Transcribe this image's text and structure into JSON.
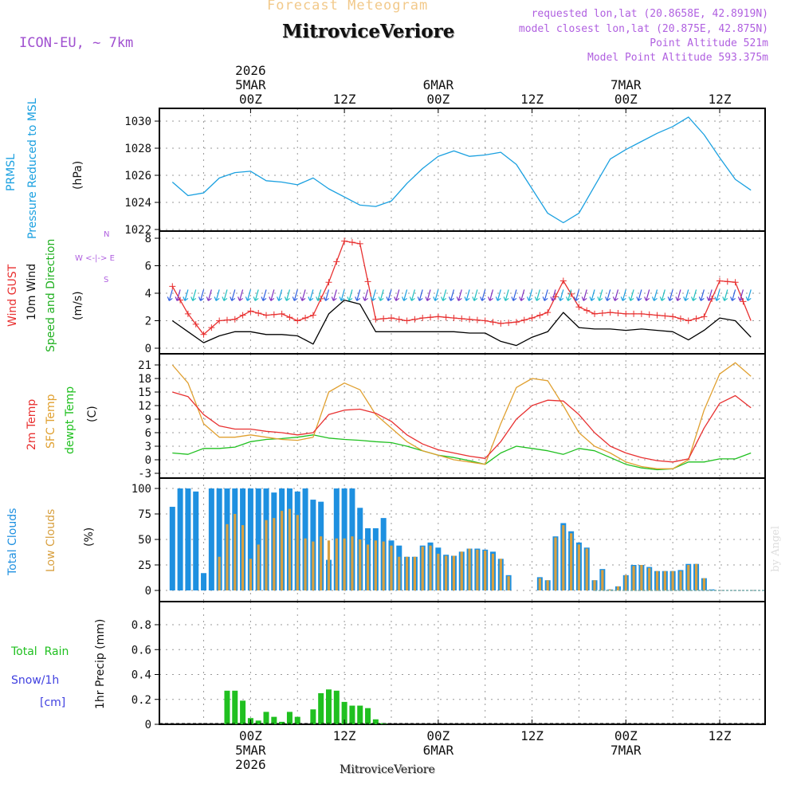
{
  "header": {
    "title": "Forecast Meteogram",
    "location": "MitroviceVeriore",
    "model": "ICON-EU, ~ 7km",
    "requested": "requested lon,lat (20.8658E, 42.8919N)",
    "closest": "model closest lon,lat (20.875E, 42.875N)",
    "point_altitude": "Point Altitude 521m",
    "model_altitude": "Model Point Altitude 593.375m",
    "watermark": "by Angel",
    "bottom_label": "MitroviceVeriore"
  },
  "time_axis": {
    "top_ticks": [
      {
        "t": 0,
        "lines": [
          "2026",
          "5MAR",
          "00Z"
        ]
      },
      {
        "t": 12,
        "lines": [
          "12Z"
        ]
      },
      {
        "t": 24,
        "lines": [
          "6MAR",
          "00Z"
        ]
      },
      {
        "t": 36,
        "lines": [
          "12Z"
        ]
      },
      {
        "t": 48,
        "lines": [
          "7MAR",
          "00Z"
        ]
      },
      {
        "t": 60,
        "lines": [
          "12Z"
        ]
      }
    ],
    "bottom_ticks": [
      {
        "t": 0,
        "lines": [
          "00Z",
          "5MAR",
          "2026"
        ]
      },
      {
        "t": 12,
        "lines": [
          "12Z"
        ]
      },
      {
        "t": 24,
        "lines": [
          "00Z",
          "6MAR"
        ]
      },
      {
        "t": 36,
        "lines": [
          "12Z"
        ]
      },
      {
        "t": 48,
        "lines": [
          "00Z",
          "7MAR"
        ]
      },
      {
        "t": 60,
        "lines": [
          "12Z"
        ]
      }
    ]
  },
  "legends": {
    "pressure": {
      "label": "PRMSL",
      "label2": "Pressure Reduced to MSL",
      "unit": "(hPa)",
      "color": "#1aa0e0"
    },
    "wind": {
      "gust": "Wind GUST",
      "wind10": "10m Wind",
      "dir": "Speed and Direction",
      "unit": "(m/s)",
      "compass": [
        "N",
        "W <-|-> E",
        "S"
      ],
      "gust_color": "#e83030",
      "wind_color": "#000000",
      "dir_color": "#20b020"
    },
    "temp": {
      "t2m": "2m Temp",
      "sfc": "SFC Temp",
      "dew": "dewpt Temp",
      "unit": "(C)",
      "t2m_color": "#e83030",
      "sfc_color": "#e0a030",
      "dew_color": "#20c020"
    },
    "clouds": {
      "total": "Total Clouds",
      "low": "Low Clouds",
      "unit": "(%)",
      "total_color": "#1e90e0",
      "low_color": "#d8a040"
    },
    "precip": {
      "rain": "Total  Rain",
      "snow": "Snow/1h",
      "cm": "[cm]",
      "axis": "1hr Precip (mm)",
      "rain_color": "#20c020",
      "snow_color": "#4040e0"
    }
  },
  "chart_data": [
    {
      "type": "line",
      "title": "PRMSL Pressure Reduced to MSL",
      "ylabel": "(hPa)",
      "ylim": [
        1022,
        1031
      ],
      "yticks": [
        1022,
        1024,
        1026,
        1028,
        1030
      ],
      "x_hours_from_5MAR00Z": [
        -10,
        -8,
        -6,
        -4,
        -2,
        0,
        2,
        4,
        6,
        8,
        10,
        12,
        14,
        16,
        18,
        20,
        22,
        24,
        26,
        28,
        30,
        32,
        34,
        36,
        38,
        40,
        42,
        44,
        46,
        48,
        50,
        52,
        54,
        56,
        58,
        60,
        62,
        64
      ],
      "series": [
        {
          "name": "PRMSL",
          "values": [
            1025.5,
            1024.5,
            1024.7,
            1025.8,
            1026.2,
            1026.3,
            1025.6,
            1025.5,
            1025.3,
            1025.8,
            1025.0,
            1024.4,
            1023.8,
            1023.7,
            1024.1,
            1025.4,
            1026.5,
            1027.4,
            1027.8,
            1027.4,
            1027.5,
            1027.7,
            1026.8,
            1025.0,
            1023.2,
            1022.5,
            1023.2,
            1025.2,
            1027.2,
            1027.9,
            1028.5,
            1029.1,
            1029.6,
            1030.3,
            1029.0,
            1027.3,
            1025.7,
            1024.9
          ]
        }
      ]
    },
    {
      "type": "line",
      "title": "Wind GUST, 10m Wind, Speed and Direction",
      "ylabel": "(m/s)",
      "ylim": [
        0,
        8
      ],
      "yticks": [
        0,
        2,
        4,
        6,
        8
      ],
      "x_hours_from_5MAR00Z": [
        -10,
        -8,
        -6,
        -4,
        -2,
        0,
        2,
        4,
        6,
        8,
        10,
        12,
        14,
        16,
        18,
        20,
        22,
        24,
        26,
        28,
        30,
        32,
        34,
        36,
        38,
        40,
        42,
        44,
        46,
        48,
        50,
        52,
        54,
        56,
        58,
        60,
        62,
        64
      ],
      "series": [
        {
          "name": "Wind GUST",
          "values": [
            4.5,
            2.5,
            1.0,
            2.0,
            2.1,
            2.7,
            2.4,
            2.5,
            2.0,
            2.4,
            4.8,
            7.8,
            7.6,
            2.1,
            2.2,
            2.0,
            2.2,
            2.3,
            2.2,
            2.1,
            2.0,
            1.8,
            1.9,
            2.2,
            2.6,
            4.9,
            3.0,
            2.5,
            2.6,
            2.5,
            2.5,
            2.4,
            2.3,
            2.0,
            2.3,
            4.9,
            4.8,
            2.0
          ]
        },
        {
          "name": "10m Wind",
          "values": [
            2.0,
            1.2,
            0.4,
            0.9,
            1.2,
            1.2,
            1.0,
            1.0,
            0.9,
            0.3,
            2.5,
            3.5,
            3.2,
            1.2,
            1.2,
            1.2,
            1.2,
            1.2,
            1.2,
            1.1,
            1.1,
            0.5,
            0.2,
            0.8,
            1.2,
            2.6,
            1.5,
            1.4,
            1.4,
            1.3,
            1.4,
            1.3,
            1.2,
            0.6,
            1.3,
            2.2,
            2.0,
            0.8
          ]
        }
      ]
    },
    {
      "type": "line",
      "title": "2m Temp, SFC Temp, dewpt Temp",
      "ylabel": "(C)",
      "ylim": [
        -3,
        22
      ],
      "yticks": [
        -3,
        0,
        3,
        6,
        9,
        12,
        15,
        18,
        21
      ],
      "x_hours_from_5MAR00Z": [
        -10,
        -8,
        -6,
        -4,
        -2,
        0,
        2,
        4,
        6,
        8,
        10,
        12,
        14,
        16,
        18,
        20,
        22,
        24,
        26,
        28,
        30,
        32,
        34,
        36,
        38,
        40,
        42,
        44,
        46,
        48,
        50,
        52,
        54,
        56,
        58,
        60,
        62,
        64
      ],
      "series": [
        {
          "name": "2m Temp",
          "values": [
            15.0,
            14.0,
            10.0,
            7.5,
            6.8,
            6.8,
            6.3,
            6.0,
            5.5,
            6.0,
            10.0,
            11.0,
            11.2,
            10.3,
            8.5,
            5.5,
            3.5,
            2.2,
            1.5,
            0.8,
            0.3,
            4.0,
            9.0,
            12.0,
            13.2,
            13.0,
            10.0,
            6.0,
            3.0,
            1.5,
            0.5,
            -0.2,
            -0.5,
            0.2,
            7.0,
            12.5,
            14.2,
            11.5
          ]
        },
        {
          "name": "SFC Temp",
          "values": [
            21.0,
            17.0,
            8.0,
            5.0,
            5.0,
            5.5,
            5.0,
            4.5,
            4.3,
            5.0,
            15.0,
            17.0,
            15.5,
            10.0,
            7.0,
            4.0,
            2.0,
            1.0,
            0.0,
            -0.5,
            -1.0,
            8.0,
            16.0,
            18.0,
            17.5,
            12.0,
            6.0,
            3.0,
            1.5,
            -0.5,
            -1.5,
            -2.0,
            -2.0,
            0.0,
            11.0,
            19.0,
            21.5,
            18.5
          ]
        },
        {
          "name": "dewpt Temp",
          "values": [
            1.5,
            1.2,
            2.5,
            2.5,
            2.8,
            4.0,
            4.5,
            4.7,
            5.0,
            5.5,
            4.8,
            4.5,
            4.3,
            4.0,
            3.8,
            3.0,
            2.0,
            1.0,
            0.5,
            -0.2,
            -1.0,
            1.5,
            3.0,
            2.5,
            2.0,
            1.2,
            2.5,
            2.0,
            0.5,
            -1.0,
            -1.8,
            -2.2,
            -2.0,
            -0.5,
            -0.5,
            0.2,
            0.2,
            1.5
          ]
        }
      ]
    },
    {
      "type": "bar",
      "title": "Total Clouds, Low Clouds",
      "ylabel": "(%)",
      "ylim": [
        0,
        105
      ],
      "yticks": [
        0,
        25,
        50,
        75,
        100
      ],
      "x_hours_from_5MAR00Z": [
        -10,
        -9,
        -8,
        -7,
        -6,
        -5,
        -4,
        -3,
        -2,
        -1,
        0,
        1,
        2,
        3,
        4,
        5,
        6,
        7,
        8,
        9,
        10,
        11,
        12,
        13,
        14,
        15,
        16,
        17,
        18,
        19,
        20,
        21,
        22,
        23,
        24,
        25,
        26,
        27,
        28,
        29,
        30,
        31,
        32,
        33,
        34,
        35,
        36,
        37,
        38,
        39,
        40,
        41,
        42,
        43,
        44,
        45,
        46,
        47,
        48,
        49,
        50,
        51,
        52,
        53,
        54,
        55,
        56,
        57,
        58,
        59,
        60,
        61,
        62,
        63,
        64
      ],
      "series": [
        {
          "name": "Total Clouds",
          "values": [
            82,
            100,
            100,
            97,
            17,
            100,
            100,
            100,
            100,
            100,
            100,
            100,
            100,
            96,
            100,
            100,
            97,
            100,
            89,
            87,
            30,
            100,
            100,
            100,
            81,
            61,
            61,
            71,
            49,
            44,
            33,
            33,
            44,
            47,
            42,
            35,
            34,
            38,
            41,
            41,
            40,
            38,
            31,
            15,
            0,
            0,
            0,
            13,
            10,
            53,
            66,
            58,
            47,
            42,
            10,
            21,
            1,
            4,
            15,
            25,
            25,
            23,
            19,
            19,
            19,
            20,
            26,
            26,
            12,
            1,
            0,
            0,
            0,
            0,
            0
          ]
        },
        {
          "name": "Low Clouds",
          "values": [
            0,
            0,
            0,
            0,
            0,
            0,
            33,
            65,
            75,
            64,
            31,
            45,
            69,
            71,
            78,
            80,
            74,
            51,
            48,
            53,
            49,
            51,
            51,
            53,
            50,
            45,
            49,
            48,
            44,
            33,
            33,
            33,
            43,
            44,
            36,
            34,
            34,
            38,
            41,
            40,
            39,
            36,
            31,
            14,
            0,
            0,
            0,
            12,
            10,
            52,
            64,
            56,
            45,
            41,
            10,
            20,
            1,
            4,
            15,
            24,
            25,
            22,
            19,
            19,
            19,
            19,
            25,
            26,
            12,
            0,
            0,
            0,
            0,
            0,
            0
          ]
        }
      ]
    },
    {
      "type": "bar",
      "title": "Total Rain, Snow/1h",
      "ylabel": "1hr Precip (mm)",
      "ylim": [
        0,
        0.98
      ],
      "yticks": [
        0,
        0.2,
        0.4,
        0.6,
        0.8
      ],
      "x_hours_from_5MAR00Z": [
        -3,
        -2,
        -1,
        0,
        1,
        2,
        3,
        4,
        5,
        6,
        7,
        8,
        9,
        10,
        11,
        12,
        13,
        14,
        15,
        16,
        17
      ],
      "series": [
        {
          "name": "Total Rain",
          "values": [
            0.27,
            0.27,
            0.19,
            0.05,
            0.03,
            0.1,
            0.06,
            0.02,
            0.1,
            0.06,
            0,
            0.12,
            0.25,
            0.28,
            0.27,
            0.18,
            0.15,
            0.15,
            0.13,
            0.04,
            0.01
          ]
        }
      ]
    }
  ]
}
